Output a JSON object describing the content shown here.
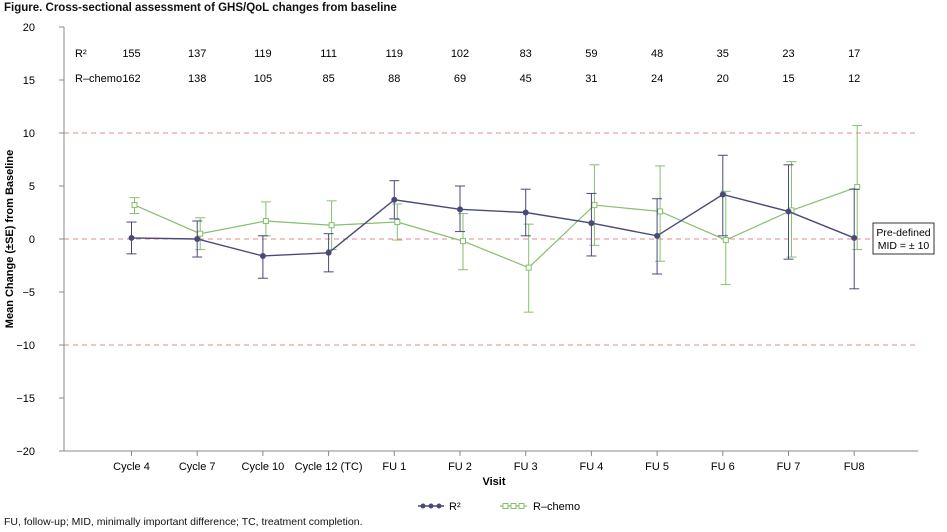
{
  "title": "Figure. Cross-sectional assessment of GHS/QoL changes from baseline",
  "footnote": "FU, follow-up; MID, minimally important difference; TC, treatment completion.",
  "annotation": {
    "line1": "Pre-defined",
    "line2": "MID = ± 10"
  },
  "colors": {
    "r2": "#4a4a7a",
    "rchemo": "#86bf6e",
    "mid": "#e38b8b",
    "baseline": "#e38b8b",
    "axis": "#888888"
  },
  "chart_data": {
    "type": "line",
    "title": "Figure. Cross-sectional assessment of GHS/QoL changes from baseline",
    "xlabel": "Visit",
    "ylabel": "Mean Change (±SE) from Baseline",
    "ylim": [
      -20,
      20
    ],
    "yticks": [
      20,
      15,
      10,
      5,
      0,
      -5,
      -10,
      -15,
      -20
    ],
    "ytick_labels": [
      "20",
      "15",
      "10",
      "5",
      "0",
      "−5",
      "−10",
      "−15",
      "−20"
    ],
    "categories": [
      "Cycle 4",
      "Cycle 7",
      "Cycle 10",
      "Cycle 12 (TC)",
      "FU 1",
      "FU 2",
      "FU 3",
      "FU 4",
      "FU 5",
      "FU 6",
      "FU 7",
      "FU8"
    ],
    "reference_lines": [
      10,
      0,
      -10
    ],
    "series": [
      {
        "name": "R²",
        "legend_label": "R²",
        "marker": "filled-circle",
        "values": [
          0.1,
          0.0,
          -1.6,
          -1.3,
          3.7,
          2.8,
          2.5,
          1.5,
          0.3,
          4.2,
          2.6,
          0.1
        ],
        "lower": [
          -1.4,
          -1.7,
          -3.7,
          -3.1,
          1.9,
          0.7,
          0.3,
          -1.6,
          -3.3,
          0.3,
          -1.9,
          -4.7
        ],
        "upper": [
          1.6,
          1.7,
          0.3,
          0.5,
          5.5,
          5.0,
          4.7,
          4.3,
          3.8,
          7.9,
          7.0,
          4.7
        ],
        "n": [
          155,
          137,
          119,
          111,
          119,
          102,
          83,
          59,
          48,
          35,
          23,
          17
        ]
      },
      {
        "name": "R–chemo",
        "legend_label": "R–chemo",
        "marker": "open-square",
        "values": [
          3.2,
          0.5,
          1.7,
          1.3,
          1.6,
          -0.2,
          -2.7,
          3.2,
          2.6,
          -0.1,
          2.7,
          4.9
        ],
        "lower": [
          2.4,
          -1.0,
          0.3,
          -1.0,
          -0.1,
          -2.9,
          -6.9,
          -0.6,
          -2.1,
          -4.3,
          -1.7,
          -1.0
        ],
        "upper": [
          3.9,
          2.0,
          3.5,
          3.6,
          3.3,
          2.4,
          1.4,
          7.0,
          6.9,
          4.5,
          7.3,
          10.7
        ],
        "n": [
          162,
          138,
          105,
          85,
          88,
          69,
          45,
          31,
          24,
          20,
          15,
          12
        ]
      }
    ],
    "n_table_labels": [
      "R²",
      "R–chemo"
    ],
    "legend_position": "bottom-center"
  }
}
